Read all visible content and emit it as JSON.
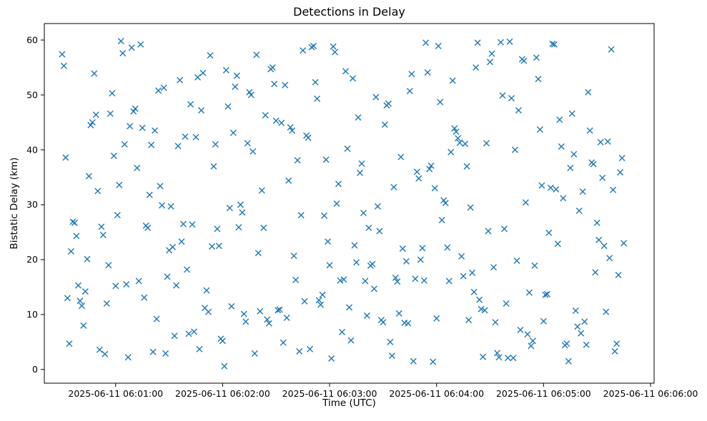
{
  "figure": {
    "title": "Detections in Delay",
    "xlabel": "Time (UTC)",
    "ylabel": "Bistatic Delay (km)"
  },
  "chart_data": {
    "type": "scatter",
    "title": "Detections in Delay",
    "xlabel": "Time (UTC)",
    "ylabel": "Bistatic Delay (km)",
    "marker": "x",
    "marker_color": "#1f77b4",
    "grid": false,
    "legend": "none",
    "x_axis": {
      "description": "x values are seconds after 2025-06-11 06:00:00 UTC",
      "range_seconds": [
        20,
        362
      ],
      "tick_positions_seconds": [
        60,
        120,
        180,
        240,
        300,
        360
      ],
      "tick_labels": [
        "2025-06-11 06:01:00",
        "2025-06-11 06:02:00",
        "2025-06-11 06:03:00",
        "2025-06-11 06:04:00",
        "2025-06-11 06:05:00",
        "2025-06-11 06:06:00"
      ]
    },
    "y_axis": {
      "range": [
        -2.5,
        63
      ],
      "tick_values": [
        0,
        10,
        20,
        30,
        40,
        50,
        60
      ]
    },
    "points": [
      [
        30,
        57.4
      ],
      [
        31,
        55.3
      ],
      [
        32,
        38.6
      ],
      [
        33,
        13.0
      ],
      [
        34,
        4.7
      ],
      [
        35,
        21.5
      ],
      [
        36,
        26.9
      ],
      [
        37,
        26.7
      ],
      [
        38,
        24.3
      ],
      [
        39,
        15.3
      ],
      [
        40,
        12.5
      ],
      [
        41,
        11.6
      ],
      [
        42,
        8.0
      ],
      [
        43,
        14.2
      ],
      [
        44,
        20.1
      ],
      [
        45,
        35.2
      ],
      [
        46,
        44.5
      ],
      [
        47,
        45.0
      ],
      [
        48,
        53.9
      ],
      [
        49,
        46.4
      ],
      [
        50,
        32.5
      ],
      [
        51,
        3.6
      ],
      [
        52,
        26.0
      ],
      [
        53,
        24.5
      ],
      [
        54,
        2.8
      ],
      [
        55,
        12.0
      ],
      [
        56,
        19.0
      ],
      [
        57,
        46.6
      ],
      [
        58,
        50.3
      ],
      [
        59,
        38.9
      ],
      [
        60,
        15.2
      ],
      [
        61,
        28.1
      ],
      [
        62,
        33.6
      ],
      [
        63,
        59.8
      ],
      [
        64,
        57.6
      ],
      [
        65,
        41.0
      ],
      [
        66,
        15.5
      ],
      [
        67,
        2.2
      ],
      [
        68,
        44.3
      ],
      [
        69,
        58.6
      ],
      [
        70,
        47.0
      ],
      [
        71,
        47.5
      ],
      [
        72,
        36.7
      ],
      [
        73,
        16.1
      ],
      [
        74,
        59.2
      ],
      [
        75,
        44.0
      ],
      [
        76,
        13.1
      ],
      [
        77,
        26.2
      ],
      [
        78,
        25.8
      ],
      [
        79,
        31.8
      ],
      [
        80,
        40.9
      ],
      [
        81,
        3.2
      ],
      [
        82,
        43.5
      ],
      [
        83,
        9.2
      ],
      [
        84,
        50.8
      ],
      [
        85,
        33.4
      ],
      [
        86,
        29.9
      ],
      [
        87,
        51.3
      ],
      [
        88,
        2.9
      ],
      [
        89,
        16.9
      ],
      [
        90,
        21.7
      ],
      [
        91,
        29.7
      ],
      [
        92,
        22.3
      ],
      [
        93,
        6.1
      ],
      [
        94,
        15.3
      ],
      [
        95,
        40.7
      ],
      [
        96,
        52.7
      ],
      [
        97,
        23.3
      ],
      [
        98,
        26.5
      ],
      [
        99,
        42.4
      ],
      [
        100,
        18.2
      ],
      [
        101,
        6.5
      ],
      [
        102,
        48.3
      ],
      [
        103,
        26.4
      ],
      [
        104,
        6.9
      ],
      [
        105,
        42.3
      ],
      [
        106,
        53.2
      ],
      [
        107,
        3.7
      ],
      [
        108,
        47.2
      ],
      [
        109,
        54.0
      ],
      [
        110,
        11.2
      ],
      [
        111,
        14.4
      ],
      [
        112,
        10.5
      ],
      [
        113,
        57.2
      ],
      [
        114,
        22.4
      ],
      [
        115,
        37.0
      ],
      [
        116,
        41.0
      ],
      [
        117,
        25.6
      ],
      [
        118,
        22.5
      ],
      [
        119,
        5.6
      ],
      [
        120,
        5.2
      ],
      [
        121,
        0.6
      ],
      [
        122,
        54.5
      ],
      [
        123,
        47.9
      ],
      [
        124,
        29.4
      ],
      [
        125,
        11.5
      ],
      [
        126,
        43.1
      ],
      [
        127,
        51.5
      ],
      [
        128,
        53.5
      ],
      [
        129,
        25.9
      ],
      [
        130,
        30.0
      ],
      [
        131,
        28.6
      ],
      [
        132,
        10.1
      ],
      [
        133,
        8.7
      ],
      [
        134,
        41.2
      ],
      [
        135,
        50.5
      ],
      [
        136,
        50.0
      ],
      [
        137,
        39.7
      ],
      [
        138,
        2.9
      ],
      [
        139,
        57.3
      ],
      [
        140,
        21.2
      ],
      [
        141,
        10.6
      ],
      [
        142,
        32.6
      ],
      [
        143,
        25.8
      ],
      [
        144,
        46.3
      ],
      [
        145,
        9.1
      ],
      [
        146,
        8.4
      ],
      [
        147,
        54.7
      ],
      [
        148,
        55.0
      ],
      [
        149,
        52.0
      ],
      [
        150,
        45.3
      ],
      [
        151,
        10.8
      ],
      [
        152,
        10.9
      ],
      [
        153,
        44.9
      ],
      [
        154,
        4.9
      ],
      [
        155,
        51.8
      ],
      [
        156,
        9.4
      ],
      [
        157,
        34.4
      ],
      [
        158,
        44.1
      ],
      [
        159,
        43.5
      ],
      [
        160,
        20.7
      ],
      [
        161,
        16.3
      ],
      [
        162,
        38.1
      ],
      [
        163,
        3.3
      ],
      [
        164,
        28.1
      ],
      [
        165,
        58.1
      ],
      [
        166,
        12.4
      ],
      [
        167,
        42.6
      ],
      [
        168,
        42.2
      ],
      [
        169,
        3.7
      ],
      [
        170,
        58.7
      ],
      [
        171,
        58.9
      ],
      [
        172,
        52.3
      ],
      [
        173,
        49.3
      ],
      [
        174,
        12.6
      ],
      [
        175,
        11.8
      ],
      [
        176,
        13.6
      ],
      [
        177,
        28.0
      ],
      [
        178,
        38.2
      ],
      [
        179,
        23.3
      ],
      [
        180,
        19.0
      ],
      [
        181,
        2.0
      ],
      [
        182,
        58.8
      ],
      [
        183,
        57.8
      ],
      [
        184,
        30.2
      ],
      [
        185,
        33.8
      ],
      [
        186,
        16.2
      ],
      [
        187,
        6.8
      ],
      [
        188,
        16.4
      ],
      [
        189,
        54.3
      ],
      [
        190,
        40.2
      ],
      [
        191,
        11.3
      ],
      [
        192,
        5.3
      ],
      [
        193,
        53.0
      ],
      [
        194,
        22.6
      ],
      [
        195,
        19.5
      ],
      [
        196,
        45.9
      ],
      [
        197,
        35.8
      ],
      [
        198,
        37.5
      ],
      [
        199,
        28.5
      ],
      [
        200,
        16.1
      ],
      [
        201,
        9.8
      ],
      [
        202,
        25.8
      ],
      [
        203,
        18.9
      ],
      [
        204,
        19.2
      ],
      [
        205,
        14.7
      ],
      [
        206,
        49.6
      ],
      [
        207,
        29.7
      ],
      [
        208,
        25.2
      ],
      [
        209,
        9.0
      ],
      [
        210,
        8.6
      ],
      [
        211,
        44.6
      ],
      [
        212,
        48.1
      ],
      [
        213,
        48.4
      ],
      [
        214,
        5.0
      ],
      [
        215,
        2.5
      ],
      [
        216,
        33.2
      ],
      [
        217,
        16.7
      ],
      [
        218,
        16.0
      ],
      [
        219,
        10.2
      ],
      [
        220,
        38.7
      ],
      [
        221,
        22.0
      ],
      [
        222,
        8.5
      ],
      [
        223,
        19.7
      ],
      [
        224,
        8.4
      ],
      [
        225,
        50.7
      ],
      [
        226,
        53.8
      ],
      [
        227,
        1.5
      ],
      [
        228,
        16.5
      ],
      [
        229,
        36.0
      ],
      [
        230,
        34.8
      ],
      [
        231,
        20.0
      ],
      [
        232,
        22.1
      ],
      [
        233,
        16.2
      ],
      [
        234,
        59.5
      ],
      [
        235,
        54.1
      ],
      [
        236,
        36.5
      ],
      [
        237,
        37.1
      ],
      [
        238,
        1.4
      ],
      [
        239,
        33.0
      ],
      [
        240,
        9.3
      ],
      [
        241,
        58.9
      ],
      [
        242,
        48.7
      ],
      [
        243,
        27.2
      ],
      [
        244,
        30.8
      ],
      [
        245,
        30.3
      ],
      [
        246,
        22.2
      ],
      [
        247,
        16.1
      ],
      [
        248,
        39.6
      ],
      [
        249,
        52.6
      ],
      [
        250,
        43.9
      ],
      [
        251,
        43.3
      ],
      [
        252,
        42.1
      ],
      [
        253,
        41.3
      ],
      [
        254,
        20.6
      ],
      [
        255,
        17.0
      ],
      [
        256,
        41.1
      ],
      [
        257,
        37.0
      ],
      [
        258,
        9.0
      ],
      [
        259,
        29.5
      ],
      [
        260,
        17.6
      ],
      [
        261,
        14.1
      ],
      [
        262,
        55.0
      ],
      [
        263,
        59.5
      ],
      [
        264,
        12.7
      ],
      [
        265,
        11.0
      ],
      [
        266,
        2.3
      ],
      [
        267,
        10.8
      ],
      [
        268,
        41.2
      ],
      [
        269,
        25.2
      ],
      [
        270,
        56.0
      ],
      [
        271,
        57.5
      ],
      [
        272,
        18.6
      ],
      [
        273,
        8.6
      ],
      [
        274,
        3.0
      ],
      [
        275,
        2.2
      ],
      [
        276,
        59.6
      ],
      [
        277,
        49.9
      ],
      [
        278,
        25.6
      ],
      [
        279,
        12.0
      ],
      [
        280,
        2.1
      ],
      [
        281,
        59.7
      ],
      [
        282,
        49.4
      ],
      [
        283,
        2.1
      ],
      [
        284,
        40.0
      ],
      [
        285,
        19.8
      ],
      [
        286,
        47.2
      ],
      [
        287,
        7.2
      ],
      [
        288,
        56.5
      ],
      [
        289,
        56.2
      ],
      [
        290,
        30.4
      ],
      [
        291,
        6.4
      ],
      [
        292,
        14.0
      ],
      [
        293,
        4.3
      ],
      [
        294,
        5.2
      ],
      [
        295,
        18.9
      ],
      [
        296,
        56.8
      ],
      [
        297,
        52.9
      ],
      [
        298,
        43.7
      ],
      [
        299,
        33.5
      ],
      [
        300,
        8.8
      ],
      [
        301,
        13.6
      ],
      [
        302,
        13.7
      ],
      [
        303,
        24.9
      ],
      [
        304,
        33.1
      ],
      [
        305,
        59.3
      ],
      [
        306,
        59.2
      ],
      [
        307,
        32.8
      ],
      [
        308,
        22.9
      ],
      [
        309,
        45.5
      ],
      [
        310,
        40.6
      ],
      [
        311,
        31.2
      ],
      [
        312,
        4.4
      ],
      [
        313,
        4.7
      ],
      [
        314,
        1.5
      ],
      [
        315,
        36.7
      ],
      [
        316,
        46.6
      ],
      [
        317,
        39.2
      ],
      [
        318,
        10.7
      ],
      [
        319,
        7.8
      ],
      [
        320,
        28.9
      ],
      [
        321,
        6.6
      ],
      [
        322,
        32.4
      ],
      [
        323,
        8.7
      ],
      [
        324,
        4.5
      ],
      [
        325,
        50.5
      ],
      [
        326,
        43.5
      ],
      [
        327,
        37.7
      ],
      [
        328,
        37.4
      ],
      [
        329,
        17.7
      ],
      [
        330,
        26.7
      ],
      [
        331,
        23.6
      ],
      [
        332,
        41.4
      ],
      [
        333,
        34.9
      ],
      [
        334,
        22.5
      ],
      [
        335,
        10.5
      ],
      [
        336,
        41.5
      ],
      [
        337,
        20.3
      ],
      [
        338,
        58.3
      ],
      [
        339,
        32.7
      ],
      [
        340,
        3.3
      ],
      [
        341,
        4.7
      ],
      [
        342,
        17.2
      ],
      [
        343,
        35.9
      ],
      [
        344,
        38.5
      ],
      [
        345,
        23.0
      ]
    ]
  }
}
